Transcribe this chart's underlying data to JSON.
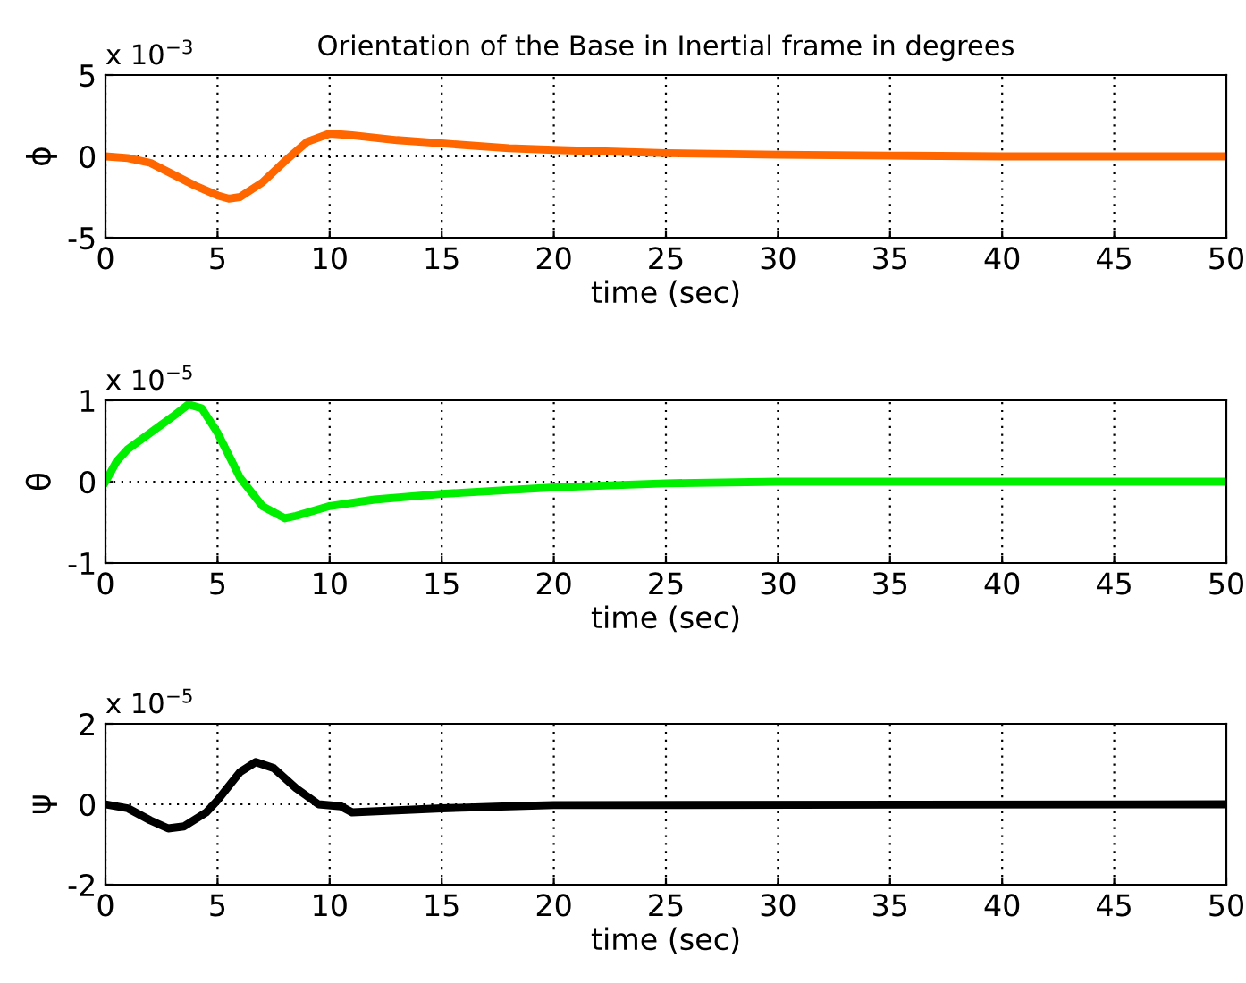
{
  "chart_data": [
    {
      "type": "line",
      "title": "Orientation of the Base in Inertial frame in degrees",
      "xlabel": "time (sec)",
      "ylabel": "ϕ",
      "annotations": [
        "x 10$^{−3}$"
      ],
      "x": [
        0,
        1,
        2,
        3,
        4,
        5,
        5.5,
        6,
        7,
        8,
        9,
        10,
        11,
        13,
        15,
        18,
        20,
        25,
        30,
        35,
        40,
        50
      ],
      "series": [
        {
          "color": "#ff6600",
          "values": [
            0,
            -0.1,
            -0.4,
            -1.1,
            -1.8,
            -2.4,
            -2.6,
            -2.5,
            -1.6,
            -0.3,
            0.9,
            1.4,
            1.3,
            1.0,
            0.8,
            0.5,
            0.4,
            0.2,
            0.1,
            0.05,
            0,
            0
          ]
        }
      ],
      "xlim": [
        0,
        50
      ],
      "xticks": [
        0,
        5,
        10,
        15,
        20,
        25,
        30,
        35,
        40,
        45,
        50
      ],
      "ylim": [
        -5,
        5
      ],
      "yticks": [
        -5,
        0,
        5
      ],
      "grid": true,
      "line_style": "solid",
      "marker": "none"
    },
    {
      "type": "line",
      "xlabel": "time (sec)",
      "ylabel": "θ",
      "annotations": [
        "x 10$^{−5}$"
      ],
      "x": [
        0,
        0.5,
        1,
        2,
        3,
        3.7,
        4.3,
        5,
        6,
        7,
        8,
        8.5,
        10,
        12,
        15,
        20,
        25,
        30,
        50
      ],
      "series": [
        {
          "color": "#00ee00",
          "values": [
            0,
            0.25,
            0.4,
            0.6,
            0.8,
            0.95,
            0.9,
            0.6,
            0.05,
            -0.3,
            -0.45,
            -0.42,
            -0.3,
            -0.22,
            -0.15,
            -0.07,
            -0.02,
            0,
            0
          ]
        }
      ],
      "xlim": [
        0,
        50
      ],
      "xticks": [
        0,
        5,
        10,
        15,
        20,
        25,
        30,
        35,
        40,
        45,
        50
      ],
      "ylim": [
        -1,
        1
      ],
      "yticks": [
        -1,
        0,
        1
      ],
      "grid": true,
      "line_style": "solid",
      "marker": "none"
    },
    {
      "type": "line",
      "xlabel": "time (sec)",
      "ylabel": "ψ",
      "annotations": [
        "x 10$^{−5}$"
      ],
      "x": [
        0,
        1,
        2,
        2.8,
        3.5,
        4.5,
        5,
        6,
        6.7,
        7.5,
        8.5,
        9.5,
        10.5,
        11,
        13,
        15,
        18,
        20,
        50
      ],
      "series": [
        {
          "color": "#000000",
          "values": [
            0,
            -0.1,
            -0.4,
            -0.6,
            -0.55,
            -0.2,
            0.1,
            0.8,
            1.05,
            0.9,
            0.4,
            0,
            -0.05,
            -0.2,
            -0.15,
            -0.1,
            -0.05,
            -0.02,
            0
          ]
        }
      ],
      "xlim": [
        0,
        50
      ],
      "xticks": [
        0,
        5,
        10,
        15,
        20,
        25,
        30,
        35,
        40,
        45,
        50
      ],
      "ylim": [
        -2,
        2
      ],
      "yticks": [
        -2,
        0,
        2
      ],
      "grid": true,
      "line_style": "solid",
      "marker": "none"
    }
  ]
}
